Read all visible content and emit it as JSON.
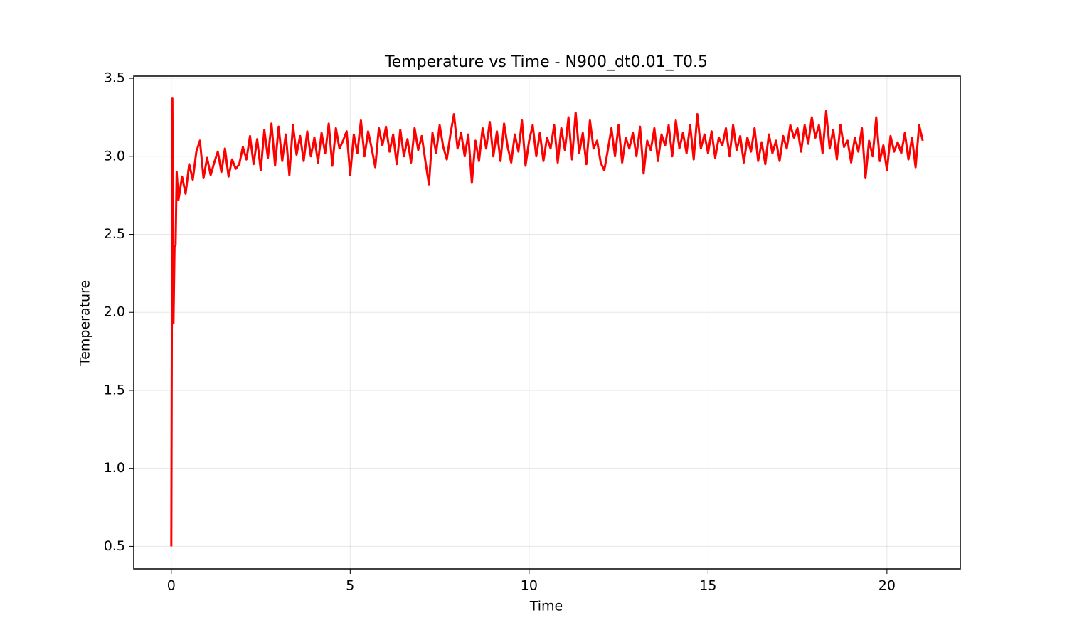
{
  "chart_data": {
    "type": "line",
    "title": "Temperature vs Time - N900_dt0.01_T0.5",
    "x_label": "Time",
    "y_label": "Temperature",
    "xlim": [
      -1.05,
      22.05
    ],
    "ylim": [
      0.356,
      3.514
    ],
    "xticks": [
      0,
      5,
      10,
      15,
      20
    ],
    "yticks": [
      0.5,
      {
        "value": 1,
        "label": "1.0"
      },
      1.5,
      {
        "value": 2,
        "label": "2.0"
      },
      2.5,
      {
        "value": 3,
        "label": "3.0"
      },
      3.5
    ],
    "grid": true,
    "series": [
      {
        "color": "#ff0000",
        "x": [
          0,
          0.03,
          0.06,
          0.09,
          0.12,
          0.15,
          0.2,
          0.3,
          0.4,
          0.5,
          0.6,
          0.7,
          0.8,
          0.9,
          1.0,
          1.1,
          1.2,
          1.3,
          1.4,
          1.5,
          1.6,
          1.7,
          1.8,
          1.9,
          2.0,
          2.1,
          2.2,
          2.3,
          2.4,
          2.5,
          2.6,
          2.7,
          2.8,
          2.9,
          3.0,
          3.1,
          3.2,
          3.3,
          3.4,
          3.5,
          3.6,
          3.7,
          3.8,
          3.9,
          4.0,
          4.1,
          4.2,
          4.3,
          4.4,
          4.5,
          4.6,
          4.7,
          4.8,
          4.9,
          5.0,
          5.1,
          5.2,
          5.3,
          5.4,
          5.5,
          5.6,
          5.7,
          5.8,
          5.9,
          6.0,
          6.1,
          6.2,
          6.3,
          6.4,
          6.5,
          6.6,
          6.7,
          6.8,
          6.9,
          7.0,
          7.1,
          7.2,
          7.3,
          7.4,
          7.5,
          7.6,
          7.7,
          7.8,
          7.9,
          8.0,
          8.1,
          8.2,
          8.3,
          8.4,
          8.5,
          8.6,
          8.7,
          8.8,
          8.9,
          9.0,
          9.1,
          9.2,
          9.3,
          9.4,
          9.5,
          9.6,
          9.7,
          9.8,
          9.9,
          10.0,
          10.1,
          10.2,
          10.3,
          10.4,
          10.5,
          10.6,
          10.7,
          10.8,
          10.9,
          11.0,
          11.1,
          11.2,
          11.3,
          11.4,
          11.5,
          11.6,
          11.7,
          11.8,
          11.9,
          12.0,
          12.1,
          12.2,
          12.3,
          12.4,
          12.5,
          12.6,
          12.7,
          12.8,
          12.9,
          13.0,
          13.1,
          13.2,
          13.3,
          13.4,
          13.5,
          13.6,
          13.7,
          13.8,
          13.9,
          14.0,
          14.1,
          14.2,
          14.3,
          14.4,
          14.5,
          14.6,
          14.7,
          14.8,
          14.9,
          15.0,
          15.1,
          15.2,
          15.3,
          15.4,
          15.5,
          15.6,
          15.7,
          15.8,
          15.9,
          16.0,
          16.1,
          16.2,
          16.3,
          16.4,
          16.5,
          16.6,
          16.7,
          16.8,
          16.9,
          17.0,
          17.1,
          17.2,
          17.3,
          17.4,
          17.5,
          17.6,
          17.7,
          17.8,
          17.9,
          18.0,
          18.1,
          18.2,
          18.3,
          18.4,
          18.5,
          18.6,
          18.7,
          18.8,
          18.9,
          19.0,
          19.1,
          19.2,
          19.3,
          19.4,
          19.5,
          19.6,
          19.7,
          19.8,
          19.9,
          20.0,
          20.1,
          20.2,
          20.3,
          20.4,
          20.5,
          20.6,
          20.7,
          20.8,
          20.9,
          21.0
        ],
        "values": [
          0.5,
          3.37,
          1.93,
          2.42,
          2.43,
          2.9,
          2.72,
          2.87,
          2.76,
          2.95,
          2.85,
          3.03,
          3.1,
          2.86,
          2.99,
          2.88,
          2.96,
          3.03,
          2.9,
          3.05,
          2.87,
          2.98,
          2.92,
          2.95,
          3.06,
          2.98,
          3.13,
          2.95,
          3.11,
          2.91,
          3.17,
          2.99,
          3.21,
          2.94,
          3.19,
          2.97,
          3.14,
          2.88,
          3.2,
          3.01,
          3.13,
          2.97,
          3.16,
          3.0,
          3.12,
          2.96,
          3.15,
          3.02,
          3.21,
          2.94,
          3.18,
          3.05,
          3.1,
          3.16,
          2.88,
          3.14,
          3.02,
          3.23,
          3.0,
          3.16,
          3.05,
          2.93,
          3.18,
          3.07,
          3.19,
          3.03,
          3.14,
          2.95,
          3.17,
          3.0,
          3.11,
          2.96,
          3.18,
          3.04,
          3.13,
          2.97,
          2.82,
          3.15,
          3.02,
          3.2,
          3.06,
          2.98,
          3.14,
          3.27,
          3.05,
          3.15,
          3.0,
          3.14,
          2.83,
          3.1,
          2.97,
          3.18,
          3.05,
          3.22,
          3.0,
          3.16,
          2.97,
          3.21,
          3.06,
          2.96,
          3.14,
          3.03,
          3.23,
          2.94,
          3.1,
          3.2,
          3.0,
          3.15,
          2.97,
          3.12,
          3.05,
          3.2,
          2.96,
          3.18,
          3.04,
          3.25,
          2.98,
          3.28,
          3.02,
          3.15,
          2.95,
          3.23,
          3.05,
          3.1,
          2.96,
          2.91,
          3.04,
          3.18,
          3.0,
          3.2,
          2.96,
          3.12,
          3.05,
          3.15,
          3.0,
          3.19,
          2.89,
          3.1,
          3.04,
          3.18,
          2.97,
          3.14,
          3.07,
          3.2,
          3.0,
          3.23,
          3.05,
          3.15,
          3.02,
          3.2,
          2.98,
          3.27,
          3.05,
          3.14,
          3.02,
          3.16,
          2.99,
          3.12,
          3.07,
          3.18,
          3.0,
          3.2,
          3.04,
          3.13,
          2.96,
          3.12,
          3.03,
          3.18,
          2.97,
          3.09,
          2.95,
          3.14,
          3.02,
          3.1,
          2.97,
          3.13,
          3.05,
          3.2,
          3.12,
          3.18,
          3.03,
          3.2,
          3.08,
          3.25,
          3.12,
          3.2,
          3.02,
          3.29,
          3.05,
          3.17,
          2.98,
          3.2,
          3.06,
          3.1,
          2.96,
          3.12,
          3.03,
          3.18,
          2.86,
          3.1,
          3.0,
          3.25,
          2.97,
          3.07,
          2.91,
          3.13,
          3.03,
          3.09,
          3.02,
          3.15,
          2.98,
          3.12,
          2.93,
          3.2,
          3.1
        ]
      }
    ]
  }
}
